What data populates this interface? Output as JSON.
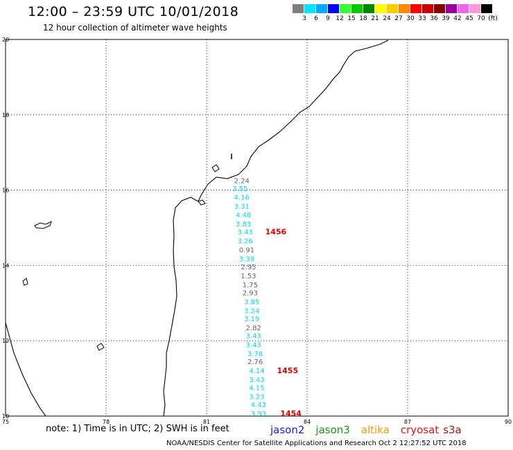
{
  "header": {
    "title": "12:00 – 23:59 UTC 10/01/2018",
    "subtitle": "12 hour collection of altimeter wave heights"
  },
  "colorbar": {
    "colors": [
      "#7f7f7f",
      "#00e5ff",
      "#00aaff",
      "#0000ff",
      "#33ff33",
      "#00cc00",
      "#008800",
      "#ffff00",
      "#ffcc00",
      "#ff8800",
      "#ff0000",
      "#cc0000",
      "#880000",
      "#990099",
      "#ee66ee",
      "#ff99dd",
      "#000000"
    ],
    "labels": [
      "3",
      "6",
      "9",
      "12",
      "15",
      "18",
      "21",
      "24",
      "27",
      "30",
      "33",
      "36",
      "39",
      "42",
      "45",
      "70",
      "(ft)"
    ]
  },
  "map": {
    "lon_range": [
      75,
      90
    ],
    "lat_range": [
      10,
      20
    ],
    "x_ticks": [
      "75",
      "78",
      "81",
      "84",
      "87",
      "90"
    ],
    "y_ticks": [
      "20",
      "18",
      "16",
      "14",
      "12",
      "10"
    ],
    "grid": "dotted"
  },
  "observations": [
    {
      "lat": 16.26,
      "lon": 82.05,
      "value": "2.24",
      "sat": "gray"
    },
    {
      "lat": 16.05,
      "lon": 82.0,
      "value": "3.55",
      "sat": "cyan"
    },
    {
      "lat": 15.82,
      "lon": 82.05,
      "value": "4.16",
      "sat": "cyan"
    },
    {
      "lat": 15.58,
      "lon": 82.05,
      "value": "3.31",
      "sat": "cyan"
    },
    {
      "lat": 15.35,
      "lon": 82.1,
      "value": "4.48",
      "sat": "cyan"
    },
    {
      "lat": 15.11,
      "lon": 82.1,
      "value": "3.83",
      "sat": "cyan"
    },
    {
      "lat": 14.9,
      "lon": 82.15,
      "value": "3.43",
      "sat": "cyan"
    },
    {
      "lat": 14.66,
      "lon": 82.15,
      "value": "3.26",
      "sat": "cyan"
    },
    {
      "lat": 14.42,
      "lon": 82.2,
      "value": "0.91",
      "sat": "gray"
    },
    {
      "lat": 14.18,
      "lon": 82.2,
      "value": "3.39",
      "sat": "cyan"
    },
    {
      "lat": 13.97,
      "lon": 82.25,
      "value": "2.95",
      "sat": "gray"
    },
    {
      "lat": 13.73,
      "lon": 82.25,
      "value": "1.53",
      "sat": "gray"
    },
    {
      "lat": 13.49,
      "lon": 82.3,
      "value": "1.75",
      "sat": "gray"
    },
    {
      "lat": 13.28,
      "lon": 82.3,
      "value": "2.93",
      "sat": "gray"
    },
    {
      "lat": 13.04,
      "lon": 82.35,
      "value": "3.85",
      "sat": "cyan"
    },
    {
      "lat": 12.8,
      "lon": 82.35,
      "value": "3.24",
      "sat": "cyan"
    },
    {
      "lat": 12.59,
      "lon": 82.35,
      "value": "3.19",
      "sat": "cyan"
    },
    {
      "lat": 12.35,
      "lon": 82.4,
      "value": "2.82",
      "sat": "gray"
    },
    {
      "lat": 12.14,
      "lon": 82.4,
      "value": "3.43",
      "sat": "cyan"
    },
    {
      "lat": 11.9,
      "lon": 82.4,
      "value": "3.43",
      "sat": "cyan"
    },
    {
      "lat": 11.66,
      "lon": 82.45,
      "value": "3.78",
      "sat": "cyan"
    },
    {
      "lat": 11.45,
      "lon": 82.45,
      "value": "2.76",
      "sat": "gray"
    },
    {
      "lat": 11.21,
      "lon": 82.5,
      "value": "4.14",
      "sat": "cyan"
    },
    {
      "lat": 10.97,
      "lon": 82.5,
      "value": "3.43",
      "sat": "cyan"
    },
    {
      "lat": 10.76,
      "lon": 82.5,
      "value": "4.15",
      "sat": "cyan"
    },
    {
      "lat": 10.52,
      "lon": 82.5,
      "value": "3.23",
      "sat": "cyan"
    },
    {
      "lat": 10.31,
      "lon": 82.55,
      "value": "4.43",
      "sat": "cyan"
    },
    {
      "lat": 10.07,
      "lon": 82.55,
      "value": "3.93",
      "sat": "cyan"
    }
  ],
  "time_labels": [
    {
      "lat": 14.9,
      "lon": 82.75,
      "value": "1456"
    },
    {
      "lat": 11.21,
      "lon": 83.1,
      "value": "1455"
    },
    {
      "lat": 10.07,
      "lon": 83.2,
      "value": "1454"
    }
  ],
  "legend": {
    "note": "note: 1) Time is in UTC; 2) SWH is in feet",
    "satellites": [
      {
        "name": "jason2",
        "color": "#1a1aff"
      },
      {
        "name": "jason3",
        "color": "#119911"
      },
      {
        "name": "altika",
        "color": "#ff9900"
      },
      {
        "name": "cryosat",
        "color": "#ee1111"
      },
      {
        "name": "s3a",
        "color": "#aa1111"
      }
    ]
  },
  "footer": "NOAA/NESDIS Center for Satellite Applications and Research    Oct  2 12:27:52 UTC 2018",
  "colors": {
    "gray": "#666666",
    "cyan": "#00d8e8",
    "time": "#dd0000"
  }
}
